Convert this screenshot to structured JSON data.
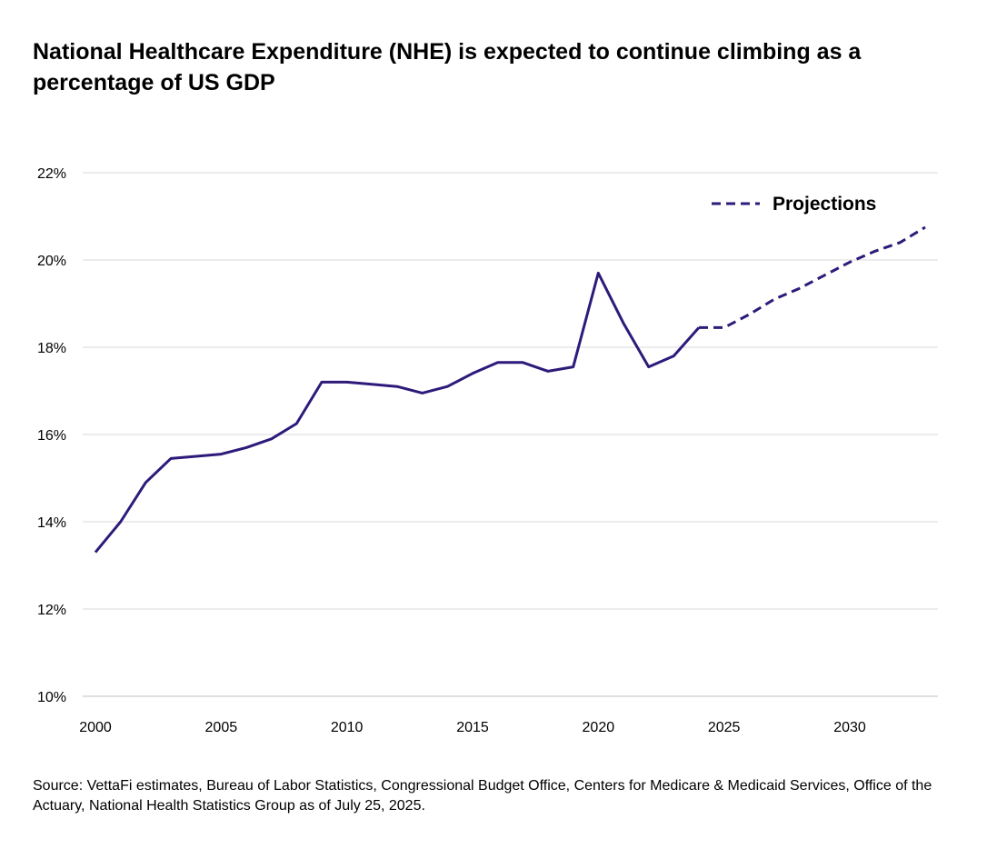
{
  "title": "National Healthcare Expenditure (NHE) is expected to continue climbing as a percentage of US GDP",
  "source": "Source: VettaFi estimates, Bureau of Labor Statistics, Congressional Budget Office, Centers for Medicare & Medicaid Services, Office of the Actuary, National Health Statistics Group as of July 25, 2025.",
  "colors": {
    "line": "#2e1a7a",
    "grid": "#d9d9d9",
    "axis": "#bfbfbf"
  },
  "chart_data": {
    "type": "line",
    "title": "National Healthcare Expenditure (NHE) is expected to continue climbing as a percentage of US GDP",
    "xlabel": "",
    "ylabel": "",
    "xlim": [
      2000,
      2033
    ],
    "ylim": [
      10,
      22
    ],
    "x_ticks": [
      2000,
      2005,
      2010,
      2015,
      2020,
      2025,
      2030
    ],
    "y_ticks": [
      10,
      12,
      14,
      16,
      18,
      20,
      22
    ],
    "y_tick_format": "%",
    "grid": true,
    "legend": {
      "position": "top-right",
      "entries": [
        {
          "label": "Projections",
          "style": "dashed"
        }
      ]
    },
    "series": [
      {
        "style": "solid",
        "x": [
          2000,
          2001,
          2002,
          2003,
          2004,
          2005,
          2006,
          2007,
          2008,
          2009,
          2010,
          2011,
          2012,
          2013,
          2014,
          2015,
          2016,
          2017,
          2018,
          2019,
          2020,
          2021,
          2022,
          2023,
          2024
        ],
        "values": [
          13.3,
          14.0,
          14.9,
          15.45,
          15.5,
          15.55,
          15.7,
          15.9,
          16.25,
          17.2,
          17.2,
          17.15,
          17.1,
          16.95,
          17.1,
          17.4,
          17.65,
          17.65,
          17.45,
          17.55,
          19.7,
          18.55,
          17.55,
          17.8,
          18.45
        ]
      },
      {
        "name": "Projections",
        "style": "dashed",
        "x": [
          2024,
          2025,
          2026,
          2027,
          2028,
          2029,
          2030,
          2031,
          2032,
          2033
        ],
        "values": [
          18.45,
          18.45,
          18.75,
          19.1,
          19.35,
          19.65,
          19.95,
          20.2,
          20.4,
          20.75
        ]
      }
    ]
  }
}
